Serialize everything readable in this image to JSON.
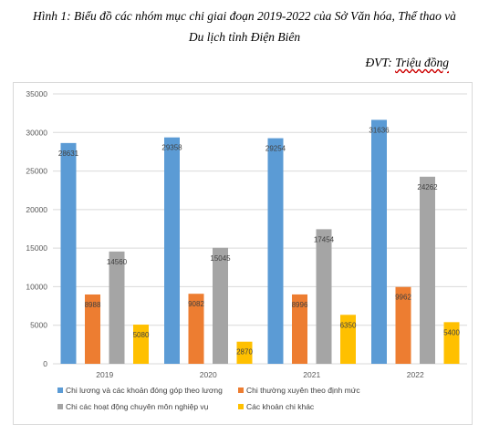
{
  "caption": {
    "line1": "Hình 1: Biểu đồ các nhóm mục chi giai đoạn 2019-2022 của Sở Văn hóa, Thể thao và",
    "line2": "Du lịch tỉnh Điện Biên",
    "unit_prefix": "ĐVT: ",
    "unit_value": "Triệu đồng"
  },
  "chart_data": {
    "type": "bar",
    "categories": [
      "2019",
      "2020",
      "2021",
      "2022"
    ],
    "ylim": [
      0,
      35000
    ],
    "yticks": [
      0,
      5000,
      10000,
      15000,
      20000,
      25000,
      30000,
      35000
    ],
    "grid": true,
    "legend_position": "bottom",
    "series": [
      {
        "name": "Chi lương và các khoản đóng góp theo lương",
        "color": "#5b9bd5",
        "values": [
          28631,
          29358,
          29254,
          31636
        ]
      },
      {
        "name": "Chi thường xuyên theo định mức",
        "color": "#ed7d31",
        "values": [
          8988,
          9082,
          8996,
          9962
        ]
      },
      {
        "name": "Chi các hoạt động chuyên môn nghiệp vụ",
        "color": "#a5a5a5",
        "values": [
          14560,
          15045,
          17454,
          24262
        ]
      },
      {
        "name": "Các khoản chi khác",
        "color": "#ffc000",
        "values": [
          5080,
          2870,
          6350,
          5400
        ]
      }
    ]
  }
}
